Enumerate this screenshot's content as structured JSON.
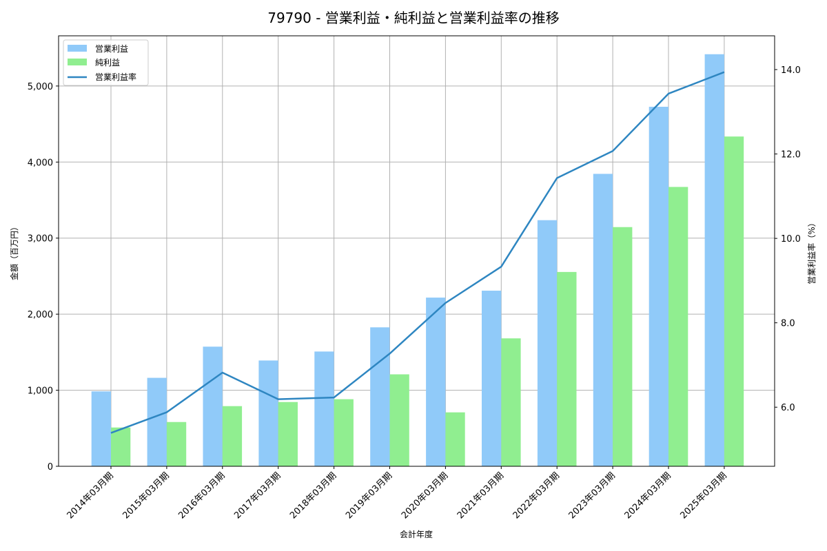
{
  "chart_data": {
    "type": "bar",
    "title": "79790 - 営業利益・純利益と営業利益率の推移",
    "xlabel": "会計年度",
    "ylabel": "金額（百万円）",
    "y2label": "営業利益率（%）",
    "categories": [
      "2014年03月期",
      "2015年03月期",
      "2016年03月期",
      "2017年03月期",
      "2018年03月期",
      "2019年03月期",
      "2020年03月期",
      "2021年03月期",
      "2022年03月期",
      "2023年03月期",
      "2024年03月期",
      "2025年03月期"
    ],
    "series": [
      {
        "name": "営業利益",
        "type": "bar",
        "axis": "left",
        "color": "#90CAF9",
        "values": [
          985,
          1163,
          1573,
          1391,
          1509,
          1827,
          2218,
          2309,
          3236,
          3845,
          4727,
          5418
        ]
      },
      {
        "name": "純利益",
        "type": "bar",
        "axis": "left",
        "color": "#90EE90",
        "values": [
          510,
          582,
          791,
          845,
          882,
          1209,
          709,
          1682,
          2555,
          3145,
          3673,
          4336
        ]
      },
      {
        "name": "営業利益率",
        "type": "line",
        "axis": "right",
        "color": "#2E86C1",
        "values": [
          5.39,
          5.88,
          6.82,
          6.19,
          6.23,
          7.27,
          8.47,
          9.33,
          11.43,
          12.07,
          13.43,
          13.94
        ]
      }
    ],
    "ylim": [
      0,
      5660
    ],
    "y2lim": [
      4.6,
      14.8
    ],
    "yticks": [
      0,
      1000,
      2000,
      3000,
      4000,
      5000
    ],
    "ytick_labels": [
      "0",
      "1,000",
      "2,000",
      "3,000",
      "4,000",
      "5,000"
    ],
    "y2ticks": [
      6.0,
      8.0,
      10.0,
      12.0,
      14.0
    ],
    "y2tick_labels": [
      "6.0",
      "8.0",
      "10.0",
      "12.0",
      "14.0"
    ],
    "grid": true,
    "legend_position": "upper left"
  }
}
